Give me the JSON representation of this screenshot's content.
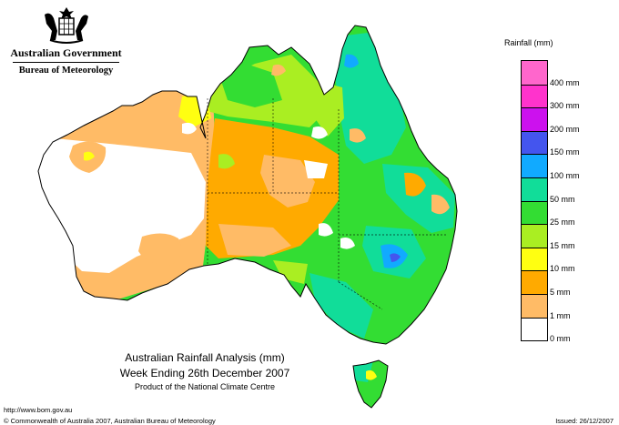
{
  "header": {
    "org_name": "Australian Government",
    "bureau": "Bureau of Meteorology"
  },
  "legend": {
    "title": "Rainfall (mm)",
    "bands": [
      {
        "color": "#ff66cc"
      },
      {
        "label": "400 mm",
        "color": "#ff33cc"
      },
      {
        "label": "300 mm",
        "color": "#cc11ee"
      },
      {
        "label": "200 mm",
        "color": "#4455ee"
      },
      {
        "label": "150 mm",
        "color": "#11aaff"
      },
      {
        "label": "100 mm",
        "color": "#11dd99"
      },
      {
        "label": "50 mm",
        "color": "#33dd33"
      },
      {
        "label": "25 mm",
        "color": "#aaee22"
      },
      {
        "label": "15 mm",
        "color": "#ffff11"
      },
      {
        "label": "10 mm",
        "color": "#ffaa00"
      },
      {
        "label": "5 mm",
        "color": "#ffbb66"
      },
      {
        "label": "1 mm",
        "color": "#ffffff"
      }
    ],
    "bottom_label": "0 mm"
  },
  "title": {
    "line1": "Australian Rainfall Analysis (mm)",
    "line2": "Week Ending 26th December 2007",
    "line3": "Product of the National Climate Centre"
  },
  "footer": {
    "url": "http://www.bom.gov.au",
    "copyright": "© Commonwealth of Australia 2007, Australian Bureau of Meteorology",
    "issued": "Issued: 26/12/2007"
  }
}
